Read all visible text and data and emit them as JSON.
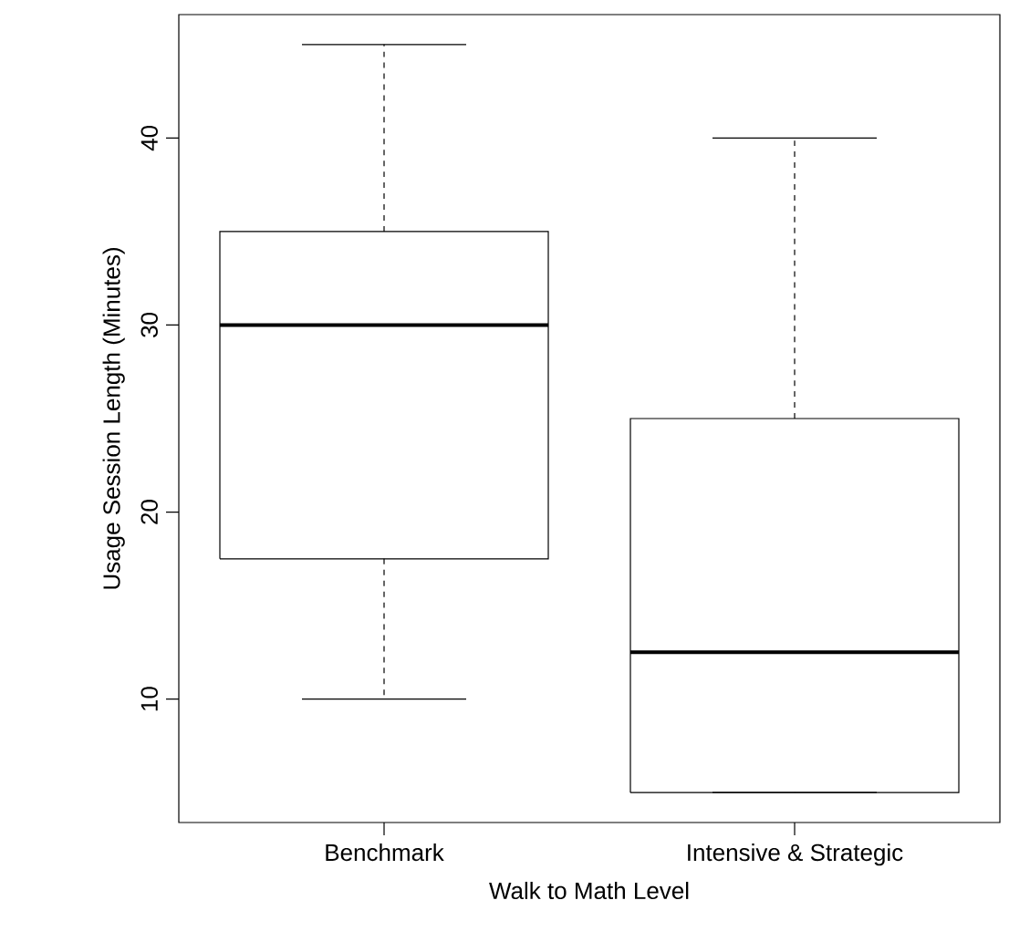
{
  "chart_data": {
    "type": "box",
    "xlabel": "Walk to Math Level",
    "ylabel": "Usage Session Length (Minutes)",
    "categories": [
      "Benchmark",
      "Intensive & Strategic"
    ],
    "boxes": [
      {
        "low": 10,
        "q1": 17.5,
        "median": 30,
        "q3": 35,
        "high": 45
      },
      {
        "low": 5,
        "q1": 5,
        "median": 12.5,
        "q3": 25,
        "high": 40
      }
    ],
    "ylim": [
      3.4,
      46.6
    ],
    "yticks": [
      10,
      20,
      30,
      40
    ]
  }
}
